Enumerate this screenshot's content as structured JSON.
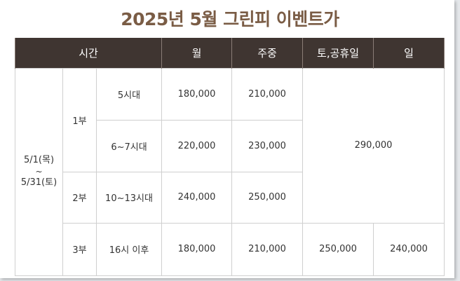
{
  "title": "2025년 5월 그린피 이벤트가",
  "headers": {
    "time": "시간",
    "weekday": "월",
    "midweek": "주중",
    "sat_holiday": "토,공휴일",
    "sunday": "일"
  },
  "period": {
    "start": "5/1(목)",
    "tilde": "~",
    "end": "5/31(토)"
  },
  "rows": [
    {
      "part": "1부",
      "time": "5시대",
      "weekday": "180,000",
      "midweek": "210,000"
    },
    {
      "time": "6~7시대",
      "weekday": "220,000",
      "midweek": "230,000"
    },
    {
      "part": "2부",
      "time": "10~13시대",
      "weekday": "240,000",
      "midweek": "250,000"
    },
    {
      "part": "3부",
      "time": "16시 이후",
      "weekday": "180,000",
      "midweek": "210,000",
      "sat_holiday": "250,000",
      "sunday": "240,000"
    }
  ],
  "weekend_merged_price": "290,000",
  "colors": {
    "title": "#7a5c45",
    "header_bg": "#3f3531",
    "header_text": "#ffffff",
    "grid": "#cfcfcf"
  }
}
